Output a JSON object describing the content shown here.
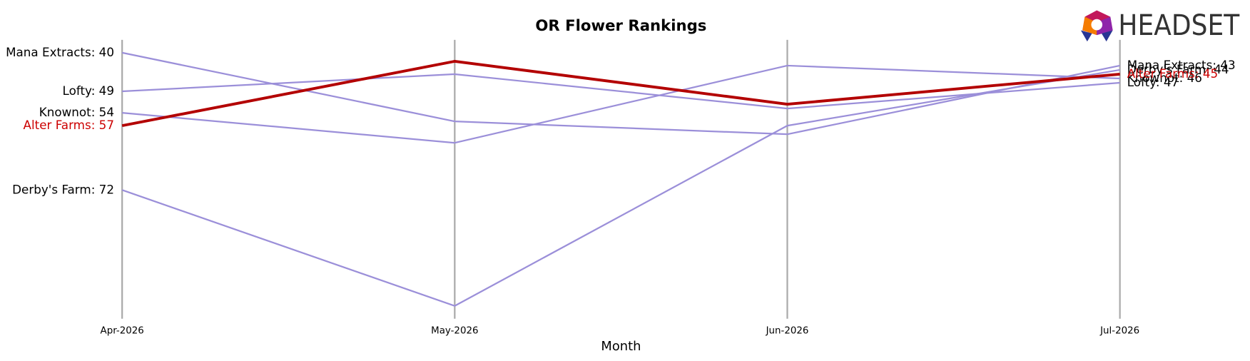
{
  "chart_data": {
    "type": "bump",
    "title": "OR Flower Rankings",
    "x_label": "Month",
    "logo": "HEADSET",
    "categories": [
      "Apr-2026",
      "May-2026",
      "Jun-2026",
      "Jul-2026"
    ],
    "ylim": [
      37,
      102
    ],
    "invert_y": true,
    "grid_color": "#aaaaaa",
    "series": [
      {
        "name": "Mana Extracts",
        "color": "#9b8fd9",
        "label_color": "#000000",
        "line_width": 2,
        "values": [
          40,
          56,
          59,
          43
        ],
        "value_labels": [
          "Mana Extracts: 40",
          null,
          null,
          "Mana Extracts: 43"
        ]
      },
      {
        "name": "Lofty",
        "color": "#9b8fd9",
        "label_color": "#000000",
        "line_width": 2,
        "values": [
          49,
          45,
          53,
          47
        ],
        "value_labels": [
          "Lofty: 49",
          null,
          null,
          "Lofty: 47"
        ]
      },
      {
        "name": "Knownot",
        "color": "#9b8fd9",
        "label_color": "#000000",
        "line_width": 2,
        "values": [
          54,
          61,
          43,
          46
        ],
        "value_labels": [
          "Knownot: 54",
          null,
          null,
          "Knownot: 46"
        ]
      },
      {
        "name": "Derby's Farm",
        "color": "#9b8fd9",
        "label_color": "#000000",
        "line_width": 2,
        "values": [
          72,
          99,
          57,
          44
        ],
        "value_labels": [
          "Derby's Farm: 72",
          null,
          null,
          "Derby's Farm: 44"
        ]
      },
      {
        "name": "Alter Farms",
        "color": "#b30000",
        "label_color": "#cc0000",
        "line_width": 3.5,
        "values": [
          57,
          42,
          52,
          45
        ],
        "value_labels": [
          "Alter Farms: 57",
          null,
          null,
          "Alter Farms: 45"
        ]
      }
    ]
  }
}
